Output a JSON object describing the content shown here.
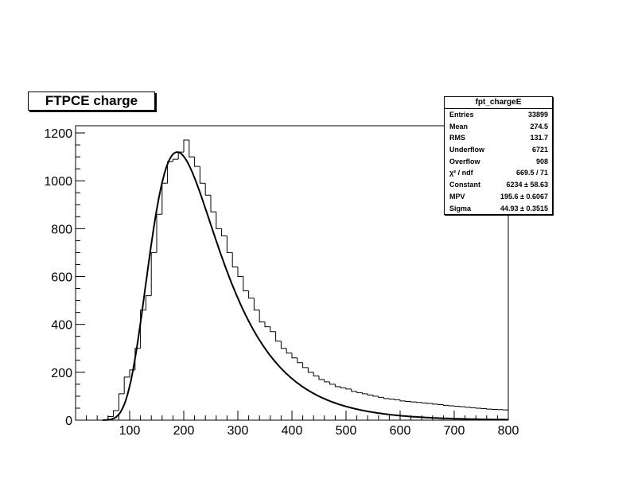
{
  "chart_data": {
    "type": "histogram",
    "title": "FTPCE charge",
    "xlim": [
      0,
      800
    ],
    "ylim": [
      0,
      1230
    ],
    "x_ticks": [
      100,
      200,
      300,
      400,
      500,
      600,
      700,
      800
    ],
    "y_ticks": [
      0,
      200,
      400,
      600,
      800,
      1000,
      1200
    ],
    "grid": false,
    "bin_width": 10,
    "histogram": {
      "bin_edges_start": 0,
      "counts": [
        0,
        0,
        0,
        0,
        0,
        0,
        15,
        40,
        110,
        180,
        210,
        300,
        460,
        520,
        700,
        860,
        990,
        1080,
        1090,
        1120,
        1170,
        1100,
        1060,
        990,
        940,
        870,
        800,
        770,
        700,
        640,
        600,
        540,
        510,
        460,
        410,
        390,
        370,
        330,
        300,
        280,
        260,
        240,
        220,
        200,
        185,
        170,
        160,
        150,
        140,
        135,
        130,
        120,
        115,
        110,
        105,
        100,
        95,
        90,
        88,
        85,
        80,
        78,
        76,
        74,
        72,
        70,
        67,
        65,
        62,
        60,
        58,
        56,
        54,
        52,
        50,
        48,
        46,
        45,
        44,
        43
      ]
    },
    "fit": {
      "type": "landau",
      "constant": 6234,
      "mpv": 195.6,
      "sigma": 44.93,
      "peak_x": 188,
      "peak_y": 1120
    },
    "stats_box": {
      "name": "fpt_chargeE",
      "rows": [
        {
          "label": "Entries",
          "value": "33899"
        },
        {
          "label": "Mean",
          "value": "274.5"
        },
        {
          "label": "RMS",
          "value": "131.7"
        },
        {
          "label": "Underflow",
          "value": "6721"
        },
        {
          "label": "Overflow",
          "value": "908"
        },
        {
          "label": "χ² / ndf",
          "value": "669.5 / 71"
        },
        {
          "label": "Constant",
          "value": "6234 ± 58.63"
        },
        {
          "label": "MPV",
          "value": "195.6 ± 0.6067"
        },
        {
          "label": "Sigma",
          "value": "44.93 ± 0.3515"
        }
      ]
    }
  }
}
